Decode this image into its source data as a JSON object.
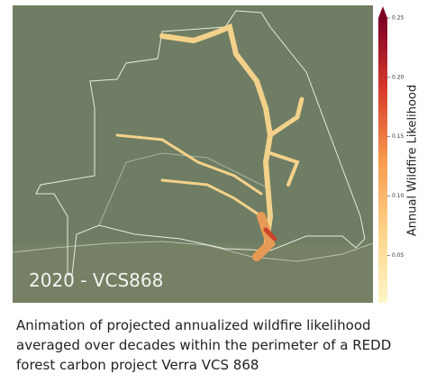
{
  "map": {
    "label": "2020 - VCS868"
  },
  "colorbar": {
    "title": "Annual Wildfire Likelihood",
    "lim": [
      0.01,
      0.25
    ],
    "ticks": [
      0.05,
      {
        "value": 0.1,
        "label": "0.10"
      },
      0.15,
      {
        "value": 0.2,
        "label": "0.20"
      },
      0.25
    ]
  },
  "caption": [
    "Animation of projected annualized wildfire likelihood",
    "averaged over decades within the perimeter of a REDD",
    "forest carbon project Verra VCS 868"
  ]
}
